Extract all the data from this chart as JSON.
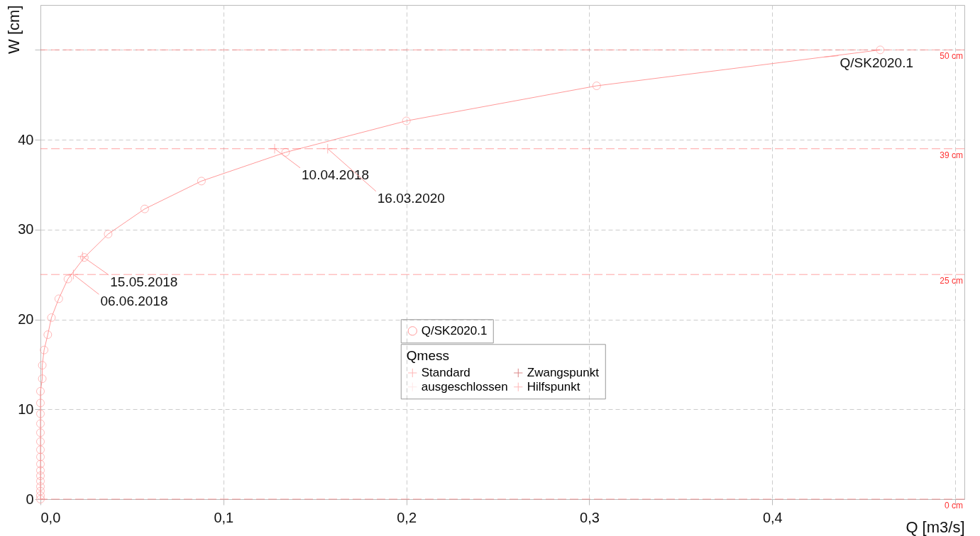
{
  "chart_data": {
    "type": "line",
    "xlabel": "Q [m3/s]",
    "ylabel": "W [cm]",
    "xlim": [
      0,
      0.505
    ],
    "ylim": [
      0,
      55
    ],
    "xticks": [
      {
        "value": 0,
        "label": "0,0"
      },
      {
        "value": 0.1,
        "label": "0,1"
      },
      {
        "value": 0.2,
        "label": "0,2"
      },
      {
        "value": 0.3,
        "label": "0,3"
      },
      {
        "value": 0.4,
        "label": "0,4"
      },
      {
        "value": 0.5,
        "label": null
      }
    ],
    "yticks": [
      0,
      10,
      20,
      30,
      40,
      {
        "value": 50,
        "label": null
      }
    ],
    "grid": true,
    "legend": "center",
    "legend_title": "Qmess",
    "series": [
      {
        "name": "Q/SK2020.1",
        "marker": "circle",
        "line_style": "solid",
        "color": "#ff9999",
        "x": [
          0,
          0,
          0,
          0,
          0,
          0,
          0,
          0,
          0,
          0,
          0,
          0,
          0,
          0,
          0,
          0,
          0.001,
          0.001,
          0.002,
          0.004,
          0.006,
          0.01,
          0.015,
          0.024,
          0.037,
          0.057,
          0.088,
          0.134,
          0.2,
          0.304,
          0.459
        ],
        "values": [
          0,
          0.4,
          0.9,
          1.4,
          2.0,
          2.6,
          3.2,
          3.9,
          4.7,
          5.5,
          6.4,
          7.4,
          8.4,
          9.5,
          10.7,
          12.0,
          13.4,
          14.9,
          16.6,
          18.3,
          20.2,
          22.3,
          24.5,
          26.9,
          29.5,
          32.3,
          35.4,
          38.6,
          42.1,
          46.0,
          50.0
        ]
      },
      {
        "name": "Standard",
        "type": "scatter",
        "marker": "cross",
        "color": "#ff9999",
        "x": [
          0.128,
          0.157,
          0.023,
          0.018
        ],
        "values": [
          39,
          39,
          27,
          25
        ]
      },
      {
        "name": "ausgeschlossen",
        "type": "scatter",
        "marker": "cross",
        "color": "#ffdddd"
      },
      {
        "name": "Zwangspunkt",
        "type": "scatter",
        "marker": "cross",
        "color": "#cc5555"
      },
      {
        "name": "Hilfspunkt",
        "type": "scatter",
        "marker": "cross",
        "color": "#ff9999"
      }
    ],
    "ref_lines": [
      {
        "axis": "y",
        "value": 50,
        "label": "50 cm",
        "color": "#ff3333",
        "line_style": "dashed"
      },
      {
        "axis": "y",
        "value": 39,
        "label": "39 cm",
        "color": "#ff3333",
        "line_style": "dashed"
      },
      {
        "axis": "y",
        "value": 25,
        "label": "25 cm",
        "color": "#ff3333",
        "line_style": "dashed"
      },
      {
        "axis": "y",
        "value": 0,
        "label": "0 cm",
        "color": "#ff3333",
        "line_style": "dashed"
      }
    ],
    "annotations": [
      {
        "text": "Q/SK2020.1",
        "x": 0.428,
        "y": 49.2
      },
      {
        "text": "10.04.2018",
        "x": 0.128,
        "y": 39
      },
      {
        "text": "16.03.2020",
        "x": 0.157,
        "y": 39
      },
      {
        "text": "15.05.2018",
        "x": 0.023,
        "y": 27
      },
      {
        "text": "06.06.2018",
        "x": 0.018,
        "y": 25
      }
    ]
  }
}
